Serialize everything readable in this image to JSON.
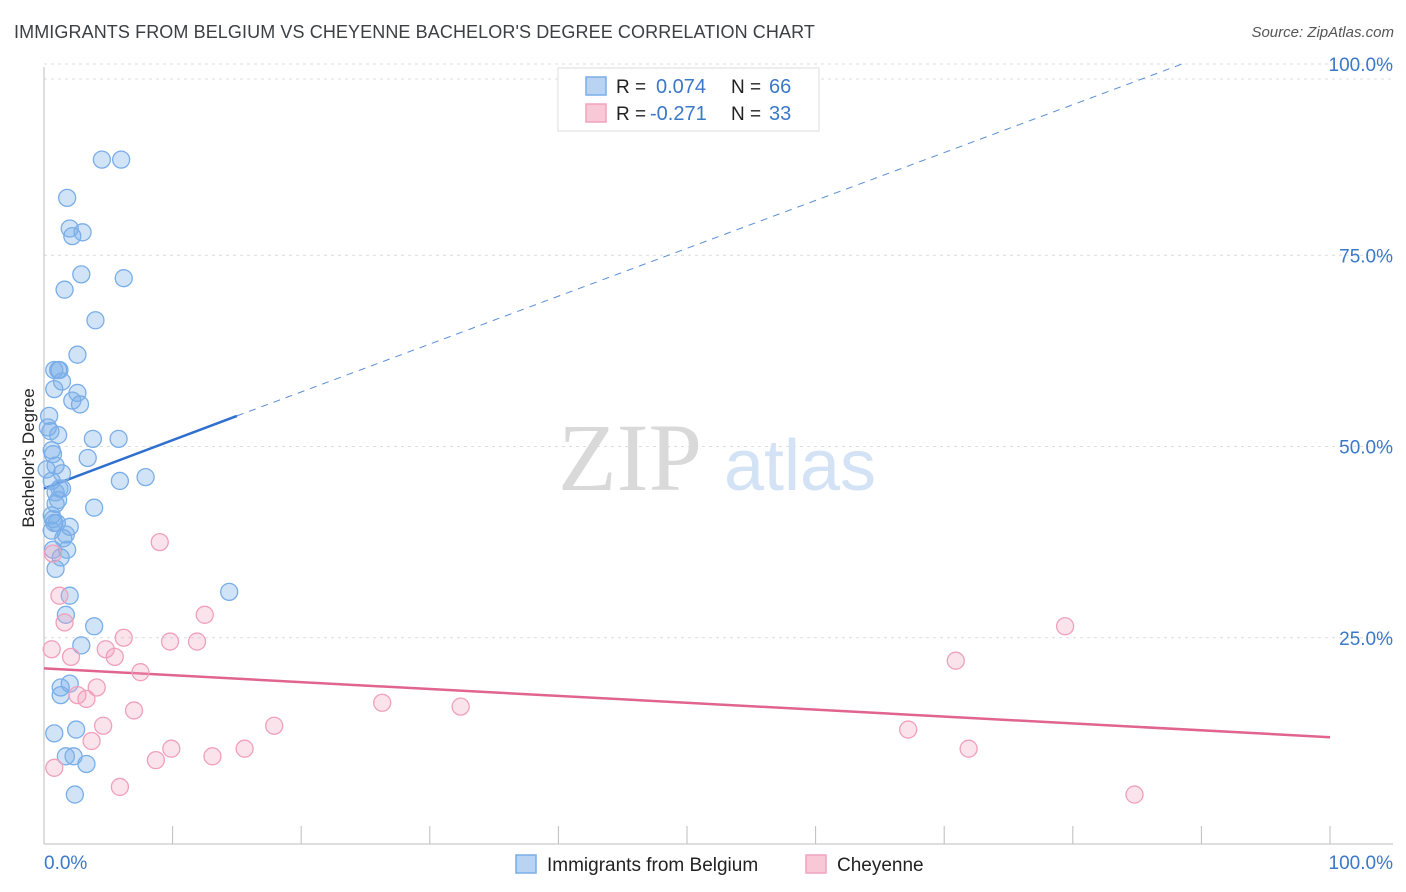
{
  "title": "IMMIGRANTS FROM BELGIUM VS CHEYENNE BACHELOR'S DEGREE CORRELATION CHART",
  "source": "Source: ZipAtlas.com",
  "watermark": {
    "zip": "ZIP",
    "atlas": "atlas"
  },
  "colors": {
    "blue": "#7aaee8",
    "blue_line": "#2f6fce",
    "pink": "#f3a3bd",
    "pink_line": "#e0648d",
    "axis_text": "#3a78c9"
  },
  "chart_data": {
    "type": "scatter",
    "title": "IMMIGRANTS FROM BELGIUM VS CHEYENNE BACHELOR'S DEGREE CORRELATION CHART",
    "xlabel": "",
    "ylabel": "Bachelor's Degree",
    "xlim": [
      0,
      100
    ],
    "ylim": [
      0,
      100
    ],
    "x_tick_labels": {
      "min": "0.0%",
      "max": "100.0%"
    },
    "y_ticks": [
      {
        "value": 25,
        "label": "25.0%"
      },
      {
        "value": 50,
        "label": "50.0%"
      },
      {
        "value": 75,
        "label": "75.0%"
      },
      {
        "value": 100,
        "label": "100.0%"
      }
    ],
    "legend": [
      {
        "r_label": "R =",
        "r_value": "0.074",
        "n_label": "N =",
        "n_value": "66"
      },
      {
        "r_label": "R =",
        "r_value": "-0.271",
        "n_label": "N =",
        "n_value": "33"
      }
    ],
    "series": [
      {
        "name": "Immigrants from Belgium",
        "color": "#7aaee8",
        "trend": {
          "x0": 0,
          "y0": 44.5,
          "x1": 15,
          "y1": 54,
          "dash_to_x": 88.5,
          "dash_to_y": 100
        },
        "points": [
          [
            4.5,
            87.5
          ],
          [
            6,
            87.5
          ],
          [
            1.8,
            82.5
          ],
          [
            2,
            78.5
          ],
          [
            3,
            78
          ],
          [
            2.2,
            77.5
          ],
          [
            2.9,
            72.5
          ],
          [
            6.2,
            72
          ],
          [
            1.6,
            70.5
          ],
          [
            4,
            66.5
          ],
          [
            2.6,
            62
          ],
          [
            0.8,
            60
          ],
          [
            1.1,
            60
          ],
          [
            1.4,
            58.5
          ],
          [
            0.8,
            57.5
          ],
          [
            2.2,
            56
          ],
          [
            2.8,
            55.5
          ],
          [
            0.3,
            52.5
          ],
          [
            0.5,
            52
          ],
          [
            1.1,
            51.5
          ],
          [
            3.8,
            51
          ],
          [
            5.8,
            51
          ],
          [
            0.6,
            49.5
          ],
          [
            0.7,
            49
          ],
          [
            3.4,
            48.5
          ],
          [
            0.2,
            47
          ],
          [
            1.4,
            46.5
          ],
          [
            7.9,
            46
          ],
          [
            5.9,
            45.5
          ],
          [
            1.4,
            44.5
          ],
          [
            1.2,
            44.5
          ],
          [
            0.9,
            44
          ],
          [
            1.1,
            43
          ],
          [
            0.9,
            42.5
          ],
          [
            3.9,
            42
          ],
          [
            0.6,
            41
          ],
          [
            0.7,
            40.5
          ],
          [
            0.8,
            40
          ],
          [
            1.0,
            40
          ],
          [
            2.0,
            39.5
          ],
          [
            0.6,
            39
          ],
          [
            1.7,
            38.5
          ],
          [
            0.7,
            36.5
          ],
          [
            1.8,
            36.5
          ],
          [
            1.3,
            35.5
          ],
          [
            0.9,
            34
          ],
          [
            2.0,
            30.5
          ],
          [
            14.4,
            31
          ],
          [
            1.7,
            28
          ],
          [
            3.9,
            26.5
          ],
          [
            2.9,
            24
          ],
          [
            2.0,
            19
          ],
          [
            1.3,
            18.5
          ],
          [
            1.3,
            17.5
          ],
          [
            2.5,
            13
          ],
          [
            0.8,
            12.5
          ],
          [
            1.7,
            9.5
          ],
          [
            2.3,
            9.5
          ],
          [
            3.3,
            8.5
          ],
          [
            2.4,
            4.5
          ],
          [
            0.4,
            54
          ],
          [
            0.6,
            45.5
          ],
          [
            1.5,
            38
          ],
          [
            0.9,
            47.5
          ],
          [
            2.6,
            57
          ],
          [
            1.2,
            60
          ]
        ]
      },
      {
        "name": "Cheyenne",
        "color": "#f3a3bd",
        "trend": {
          "x0": 0,
          "y0": 21,
          "x1": 100,
          "y1": 12
        },
        "points": [
          [
            9,
            37.5
          ],
          [
            0.7,
            36
          ],
          [
            1.2,
            30.5
          ],
          [
            12.5,
            28
          ],
          [
            1.6,
            27
          ],
          [
            6.2,
            25
          ],
          [
            0.6,
            23.5
          ],
          [
            4.8,
            23.5
          ],
          [
            9.8,
            24.5
          ],
          [
            11.9,
            24.5
          ],
          [
            2.1,
            22.5
          ],
          [
            5.5,
            22.5
          ],
          [
            7.5,
            20.5
          ],
          [
            79.4,
            26.5
          ],
          [
            70.9,
            22
          ],
          [
            4.1,
            18.5
          ],
          [
            2.6,
            17.5
          ],
          [
            3.3,
            17
          ],
          [
            26.3,
            16.5
          ],
          [
            32.4,
            16
          ],
          [
            7,
            15.5
          ],
          [
            4.6,
            13.5
          ],
          [
            17.9,
            13.5
          ],
          [
            67.2,
            13
          ],
          [
            3.7,
            11.5
          ],
          [
            9.9,
            10.5
          ],
          [
            15.6,
            10.5
          ],
          [
            71.9,
            10.5
          ],
          [
            8.7,
            9
          ],
          [
            13.1,
            9.5
          ],
          [
            5.9,
            5.5
          ],
          [
            84.8,
            4.5
          ],
          [
            0.8,
            8
          ]
        ]
      }
    ]
  }
}
